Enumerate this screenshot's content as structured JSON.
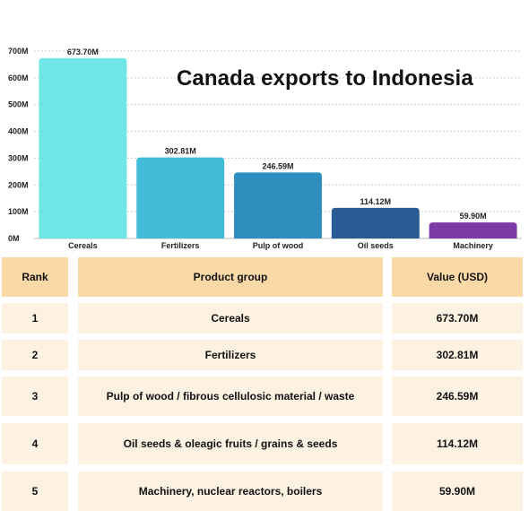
{
  "chart_data": {
    "type": "bar",
    "title": "Canada exports to Indonesia",
    "categories": [
      "Cereals",
      "Fertilizers",
      "Pulp of wood",
      "Oil seeds",
      "Machinery"
    ],
    "values": [
      673.7,
      302.81,
      246.59,
      114.12,
      59.9
    ],
    "value_labels": [
      "673.70M",
      "302.81M",
      "246.59M",
      "114.12M",
      "59.90M"
    ],
    "colors": [
      "#6ee6e6",
      "#42bcd8",
      "#2e8fbf",
      "#2a5b92",
      "#7b3aa5"
    ],
    "ylim": [
      0,
      700
    ],
    "yticks": [
      0,
      100,
      200,
      300,
      400,
      500,
      600,
      700
    ],
    "ytick_labels": [
      "0M",
      "100M",
      "200M",
      "300M",
      "400M",
      "500M",
      "600M",
      "700M"
    ],
    "xlabel": "",
    "ylabel": "",
    "grid": "horizontal dashed"
  },
  "table": {
    "headers": [
      "Rank",
      "Product group",
      "Value (USD)"
    ],
    "rows": [
      [
        "1",
        "Cereals",
        "673.70M"
      ],
      [
        "2",
        "Fertilizers",
        "302.81M"
      ],
      [
        "3",
        "Pulp of wood / fibrous cellulosic material / waste",
        "246.59M"
      ],
      [
        "4",
        "Oil seeds & oleagic fruits / grains & seeds",
        "114.12M"
      ],
      [
        "5",
        "Machinery, nuclear reactors, boilers",
        "59.90M"
      ]
    ]
  }
}
